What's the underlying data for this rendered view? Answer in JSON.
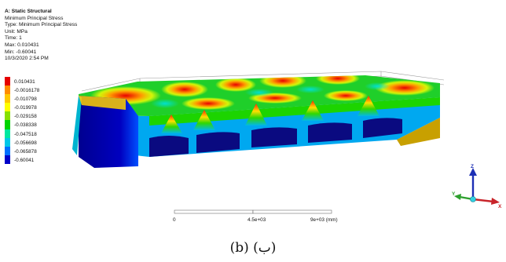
{
  "info": {
    "title": "A: Static Structural",
    "subtitle": "Minimum Principal Stress",
    "type": "Type: Minimum Principal Stress",
    "unit": "Unit: MPa",
    "time": "Time: 1",
    "max": "Max: 0.010431",
    "min": "Min: -0.60041",
    "timestamp": "10/3/2020 2:54 PM"
  },
  "legend": [
    {
      "value": "0.010431",
      "color": "#e50000"
    },
    {
      "value": "-0.0016178",
      "color": "#ff8c00"
    },
    {
      "value": "-0.010798",
      "color": "#ffc800"
    },
    {
      "value": "-0.019978",
      "color": "#ffff00"
    },
    {
      "value": "-0.029158",
      "color": "#88e000"
    },
    {
      "value": "-0.038338",
      "color": "#00d400"
    },
    {
      "value": "-0.047518",
      "color": "#00e8a0"
    },
    {
      "value": "-0.056698",
      "color": "#00c8e8"
    },
    {
      "value": "-0.065878",
      "color": "#0070ff"
    },
    {
      "value": "-0.60041",
      "color": "#0000c8"
    }
  ],
  "scale": {
    "start": "0",
    "mid": "4.5e+03",
    "end": "9e+03 (mm)"
  },
  "triad": {
    "z": "Z",
    "y": "Y",
    "x": "X",
    "z_color": "#1c2fb5",
    "y_color": "#2ea02e",
    "x_color": "#c8242a"
  },
  "caption": "(b) (ب)"
}
